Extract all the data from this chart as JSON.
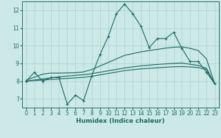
{
  "xlabel": "Humidex (Indice chaleur)",
  "x": [
    0,
    1,
    2,
    3,
    4,
    5,
    6,
    7,
    8,
    9,
    10,
    11,
    12,
    13,
    14,
    15,
    16,
    17,
    18,
    19,
    20,
    21,
    22,
    23
  ],
  "y_main": [
    8.0,
    8.5,
    8.0,
    8.2,
    8.2,
    6.7,
    7.2,
    6.9,
    8.3,
    9.5,
    10.5,
    11.8,
    12.35,
    11.8,
    11.1,
    9.9,
    10.4,
    10.4,
    10.75,
    9.85,
    9.1,
    9.1,
    8.5,
    7.85
  ],
  "y_trend1": [
    8.05,
    8.22,
    8.39,
    8.45,
    8.45,
    8.46,
    8.47,
    8.52,
    8.65,
    8.85,
    9.05,
    9.25,
    9.45,
    9.55,
    9.65,
    9.72,
    9.79,
    9.86,
    9.91,
    9.93,
    9.85,
    9.72,
    9.25,
    7.85
  ],
  "y_trend2": [
    8.0,
    8.06,
    8.12,
    8.18,
    8.24,
    8.28,
    8.32,
    8.36,
    8.42,
    8.5,
    8.58,
    8.66,
    8.74,
    8.8,
    8.86,
    8.9,
    8.94,
    8.97,
    9.0,
    9.02,
    8.95,
    8.88,
    8.72,
    7.85
  ],
  "y_trend3": [
    8.0,
    8.03,
    8.06,
    8.09,
    8.12,
    8.15,
    8.18,
    8.21,
    8.27,
    8.35,
    8.43,
    8.51,
    8.59,
    8.64,
    8.69,
    8.72,
    8.75,
    8.78,
    8.81,
    8.82,
    8.8,
    8.76,
    8.65,
    7.85
  ],
  "bg_color": "#cce9e8",
  "grid_color": "#aad0cf",
  "line_color": "#1a6b60",
  "xlim": [
    -0.5,
    23.5
  ],
  "ylim": [
    6.5,
    12.5
  ],
  "yticks": [
    7,
    8,
    9,
    10,
    11,
    12
  ],
  "xticks": [
    0,
    1,
    2,
    3,
    4,
    5,
    6,
    7,
    8,
    9,
    10,
    11,
    12,
    13,
    14,
    15,
    16,
    17,
    18,
    19,
    20,
    21,
    22,
    23
  ],
  "tick_fontsize": 5.5,
  "xlabel_fontsize": 6.5
}
